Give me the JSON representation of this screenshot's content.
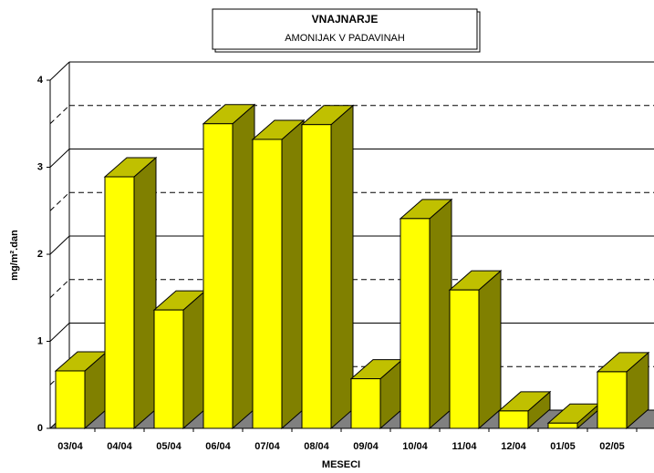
{
  "chart_data": {
    "type": "bar3d",
    "title": "VNAJNARJE",
    "subtitle": "AMONIJAK  V  PADAVINAH",
    "x_label": "MESECI",
    "y_label": "mg/m².dan",
    "categories": [
      "03/04",
      "04/04",
      "05/04",
      "06/04",
      "07/04",
      "08/04",
      "09/04",
      "10/04",
      "11/04",
      "12/04",
      "01/05",
      "02/05"
    ],
    "values": [
      0.66,
      2.89,
      1.36,
      3.5,
      3.32,
      3.49,
      0.57,
      2.41,
      1.59,
      0.2,
      0.06,
      0.65
    ],
    "color": "#ffff00",
    "ylim": [
      0,
      4
    ],
    "yticks": [
      0,
      1,
      2,
      3,
      4
    ],
    "minor_yticks": [
      0.5,
      1.5,
      2.5,
      3.5
    ],
    "grid": true
  }
}
